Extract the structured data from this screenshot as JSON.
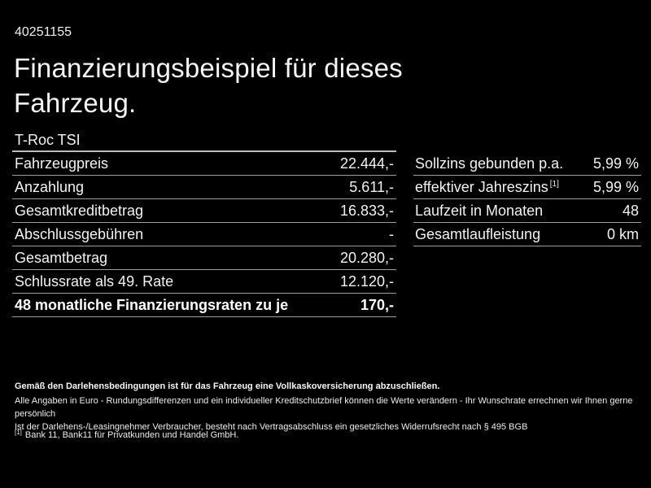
{
  "page": {
    "vehicle_id": "40251155",
    "title": "Finanzierungsbeispiel für dieses Fahrzeug."
  },
  "colors": {
    "background": "#000000",
    "text": "#f2f2f2",
    "separator": "#9e9e9e"
  },
  "finance_table": {
    "header": "T-Roc TSI",
    "rows": [
      {
        "label": "Fahrzeugpreis",
        "value": "22.444,-"
      },
      {
        "label": "Anzahlung",
        "value": "5.611,-"
      },
      {
        "label": "Gesamtkreditbetrag",
        "value": "16.833,-"
      },
      {
        "label": "Abschlussgebühren",
        "value": "-"
      },
      {
        "label": "Gesamtbetrag",
        "value": "20.280,-"
      },
      {
        "label": "Schlussrate als 49. Rate",
        "value": "12.120,-"
      },
      {
        "label": "48 monatliche Finanzierungsraten zu je",
        "value": "170,-",
        "bold": true
      }
    ]
  },
  "conditions_table": {
    "rows": [
      {
        "label": "Sollzins gebunden p.a.",
        "sup": "",
        "value": "5,99 %"
      },
      {
        "label": "effektiver Jahreszins",
        "sup": "[1]",
        "value": "5,99 %"
      },
      {
        "label": "Laufzeit in Monaten",
        "sup": "",
        "value": "48"
      },
      {
        "label": "Gesamtlaufleistung",
        "sup": "",
        "value": "0 km"
      }
    ]
  },
  "footer": {
    "insurance_note": "Gemäß den Darlehensbedingungen ist für das Fahrzeug eine Vollkaskoversicherung abzuschließen.",
    "disclaimer_line1": "Alle Angaben in Euro - Rundungsdifferenzen und ein individueller Kreditschutzbrief können die Werte verändern - Ihr Wunschrate errechnen wir Ihnen gerne persönlich",
    "disclaimer_line2": "Ist der Darlehens-/Leasingnehmer Verbraucher, besteht nach Vertragsabschluss ein gesetzliches Widerrufsrecht nach § 495 BGB",
    "footnote_marker": "[1]",
    "footnote_text": "Bank 11, Bank11 für Privatkunden und Handel GmbH."
  }
}
